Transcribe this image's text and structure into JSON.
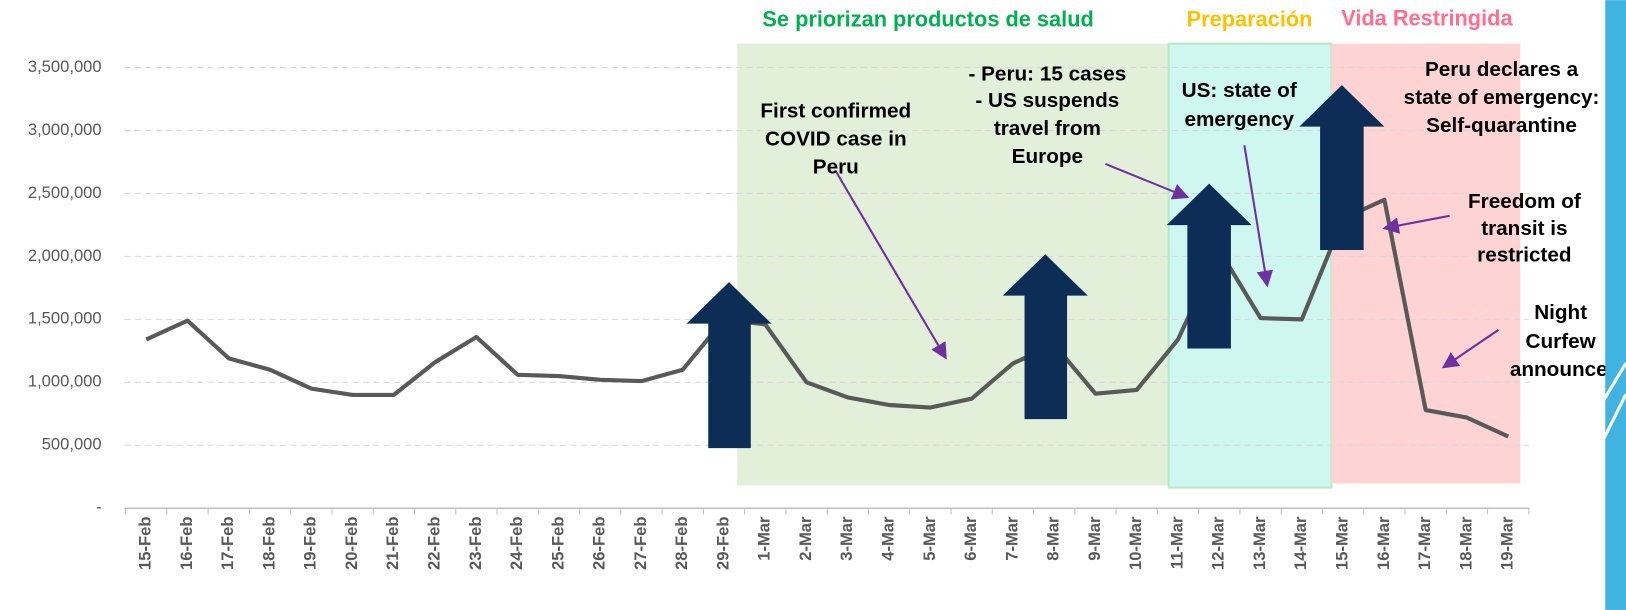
{
  "chart_data": {
    "type": "line",
    "categories": [
      "15-Feb",
      "16-Feb",
      "17-Feb",
      "18-Feb",
      "19-Feb",
      "20-Feb",
      "21-Feb",
      "22-Feb",
      "23-Feb",
      "24-Feb",
      "25-Feb",
      "26-Feb",
      "27-Feb",
      "28-Feb",
      "29-Feb",
      "1-Mar",
      "2-Mar",
      "3-Mar",
      "4-Mar",
      "5-Mar",
      "6-Mar",
      "7-Mar",
      "8-Mar",
      "9-Mar",
      "10-Mar",
      "11-Mar",
      "12-Mar",
      "13-Mar",
      "14-Mar",
      "15-Mar",
      "16-Mar",
      "17-Mar",
      "18-Mar",
      "19-Mar"
    ],
    "series": [
      {
        "color": "#595959",
        "values": [
          1340000,
          1490000,
          1190000,
          1100000,
          950000,
          900000,
          900000,
          1160000,
          1360000,
          1060000,
          1050000,
          1020000,
          1010000,
          1100000,
          1500000,
          1460000,
          1000000,
          880000,
          820000,
          800000,
          870000,
          1150000,
          1300000,
          910000,
          940000,
          1340000,
          2050000,
          1510000,
          1500000,
          2300000,
          2450000,
          780000,
          720000,
          570000
        ]
      }
    ],
    "ylim": [
      0,
      3500000
    ],
    "yticks": [
      {
        "value": 0,
        "label": "-"
      },
      {
        "value": 500000,
        "label": "500,000"
      },
      {
        "value": 1000000,
        "label": "1,000,000"
      },
      {
        "value": 1500000,
        "label": "1,500,000"
      },
      {
        "value": 2000000,
        "label": "2,000,000"
      },
      {
        "value": 2500000,
        "label": "2,500,000"
      },
      {
        "value": 3000000,
        "label": "3,000,000"
      },
      {
        "value": 3500000,
        "label": "3,500,000"
      }
    ],
    "grid": true,
    "regions": [
      {
        "label": "Se priorizan productos de salud",
        "color": "#00b050"
      },
      {
        "label": "Preparación",
        "color": "#ffc000"
      },
      {
        "label": "Vida Restringida",
        "color": "#ff6f8e"
      }
    ],
    "annotations": [
      {
        "lines": [
          "First confirmed",
          "COVID case in",
          "Peru"
        ]
      },
      {
        "lines": [
          "- Peru: 15 cases",
          "- US suspends",
          "travel from",
          "Europe"
        ]
      },
      {
        "lines": [
          "US: state of",
          "emergency"
        ]
      },
      {
        "lines": [
          "Peru declares a",
          "state of emergency:",
          "Self-quarantine"
        ]
      },
      {
        "lines": [
          "Freedom of",
          "transit is",
          "restricted"
        ]
      },
      {
        "lines": [
          "Night",
          "Curfew",
          "announced"
        ]
      }
    ]
  }
}
